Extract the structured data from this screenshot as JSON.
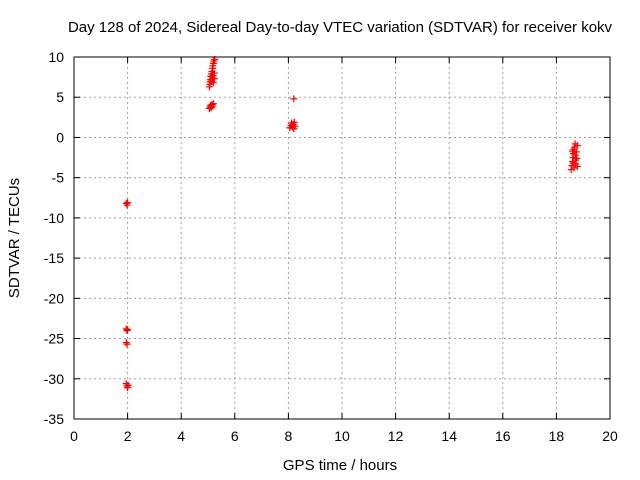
{
  "chart_data": {
    "type": "scatter",
    "title": "Day 128 of 2024, Sidereal Day-to-day VTEC variation (SDTVAR) for receiver kokv",
    "xlabel": "GPS time / hours",
    "ylabel": "SDTVAR / TECUs",
    "xlim": [
      0,
      20
    ],
    "ylim": [
      -35,
      10
    ],
    "xticks": [
      "0",
      "2",
      "4",
      "6",
      "8",
      "10",
      "12",
      "14",
      "16",
      "18",
      "20"
    ],
    "yticks": [
      "10",
      "5",
      "0",
      "-5",
      "-10",
      "-15",
      "-20",
      "-25",
      "-30",
      "-35"
    ],
    "grid": true,
    "marker": "+",
    "color": "#ff0000",
    "series": [
      {
        "name": "SDTVAR",
        "points": [
          [
            1.95,
            -8.2
          ],
          [
            1.98,
            -8.4
          ],
          [
            2.0,
            -8.1
          ],
          [
            1.95,
            -23.8
          ],
          [
            1.98,
            -24.0
          ],
          [
            2.0,
            -23.9
          ],
          [
            1.95,
            -25.5
          ],
          [
            1.98,
            -25.7
          ],
          [
            1.95,
            -30.6
          ],
          [
            1.98,
            -30.9
          ],
          [
            2.0,
            -31.1
          ],
          [
            2.02,
            -30.8
          ],
          [
            5.05,
            3.6
          ],
          [
            5.08,
            3.8
          ],
          [
            5.1,
            4.0
          ],
          [
            5.12,
            3.7
          ],
          [
            5.15,
            4.1
          ],
          [
            5.18,
            3.9
          ],
          [
            5.2,
            4.2
          ],
          [
            5.05,
            6.3
          ],
          [
            5.07,
            6.6
          ],
          [
            5.08,
            6.9
          ],
          [
            5.1,
            7.2
          ],
          [
            5.1,
            7.6
          ],
          [
            5.12,
            7.0
          ],
          [
            5.13,
            7.9
          ],
          [
            5.15,
            8.2
          ],
          [
            5.16,
            7.4
          ],
          [
            5.17,
            8.6
          ],
          [
            5.18,
            8.9
          ],
          [
            5.19,
            7.7
          ],
          [
            5.2,
            9.2
          ],
          [
            5.22,
            9.5
          ],
          [
            5.23,
            8.0
          ],
          [
            5.25,
            9.7
          ],
          [
            5.2,
            6.8
          ],
          [
            5.24,
            7.3
          ],
          [
            8.2,
            4.8
          ],
          [
            8.05,
            1.2
          ],
          [
            8.1,
            1.5
          ],
          [
            8.12,
            1.8
          ],
          [
            8.15,
            1.3
          ],
          [
            8.18,
            1.6
          ],
          [
            8.2,
            1.1
          ],
          [
            8.22,
            1.9
          ],
          [
            8.25,
            1.4
          ],
          [
            18.55,
            -4.0
          ],
          [
            18.58,
            -3.5
          ],
          [
            18.6,
            -3.0
          ],
          [
            18.62,
            -2.5
          ],
          [
            18.63,
            -2.0
          ],
          [
            18.65,
            -1.5
          ],
          [
            18.66,
            -3.8
          ],
          [
            18.68,
            -1.2
          ],
          [
            18.7,
            -0.8
          ],
          [
            18.7,
            -2.2
          ],
          [
            18.72,
            -2.8
          ],
          [
            18.72,
            -3.3
          ],
          [
            18.75,
            -1.8
          ],
          [
            18.76,
            -2.6
          ],
          [
            18.78,
            -3.6
          ],
          [
            18.78,
            -1.0
          ],
          [
            18.6,
            -1.7
          ],
          [
            18.64,
            -3.2
          ]
        ]
      }
    ]
  }
}
